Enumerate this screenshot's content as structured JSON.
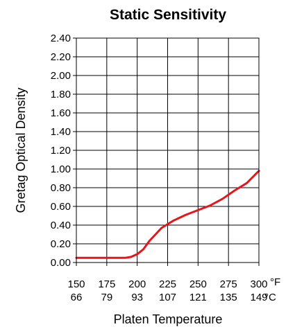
{
  "chart_data": {
    "type": "line",
    "title": "Static Sensitivity",
    "xlabel": "Platen Temperature",
    "ylabel": "Gretag Optical Density",
    "xlim": [
      150,
      300
    ],
    "ylim": [
      0,
      2.4
    ],
    "grid": true,
    "y_tick_labels": [
      "0.00",
      "0.20",
      "0.40",
      "0.60",
      "0.80",
      "1.00",
      "1.20",
      "1.40",
      "1.60",
      "1.80",
      "2.00",
      "2.20",
      "2.40"
    ],
    "x_ticks_f": [
      150,
      175,
      200,
      225,
      250,
      275,
      300
    ],
    "x_tick_labels_f": [
      "150",
      "175",
      "200",
      "225",
      "250",
      "275",
      "300"
    ],
    "x_tick_labels_c": [
      "66",
      "79",
      "93",
      "107",
      "121",
      "135",
      "149"
    ],
    "x_unit_f": "°F",
    "x_unit_c": "°C",
    "series": [
      {
        "color": "#e8141c",
        "x": [
          150,
          160,
          170,
          180,
          190,
          195,
          200,
          205,
          210,
          215,
          220,
          225,
          230,
          240,
          250,
          260,
          270,
          280,
          290,
          300
        ],
        "y": [
          0.05,
          0.05,
          0.05,
          0.05,
          0.05,
          0.06,
          0.09,
          0.14,
          0.23,
          0.3,
          0.37,
          0.41,
          0.45,
          0.51,
          0.56,
          0.61,
          0.68,
          0.77,
          0.85,
          0.98
        ]
      }
    ]
  }
}
